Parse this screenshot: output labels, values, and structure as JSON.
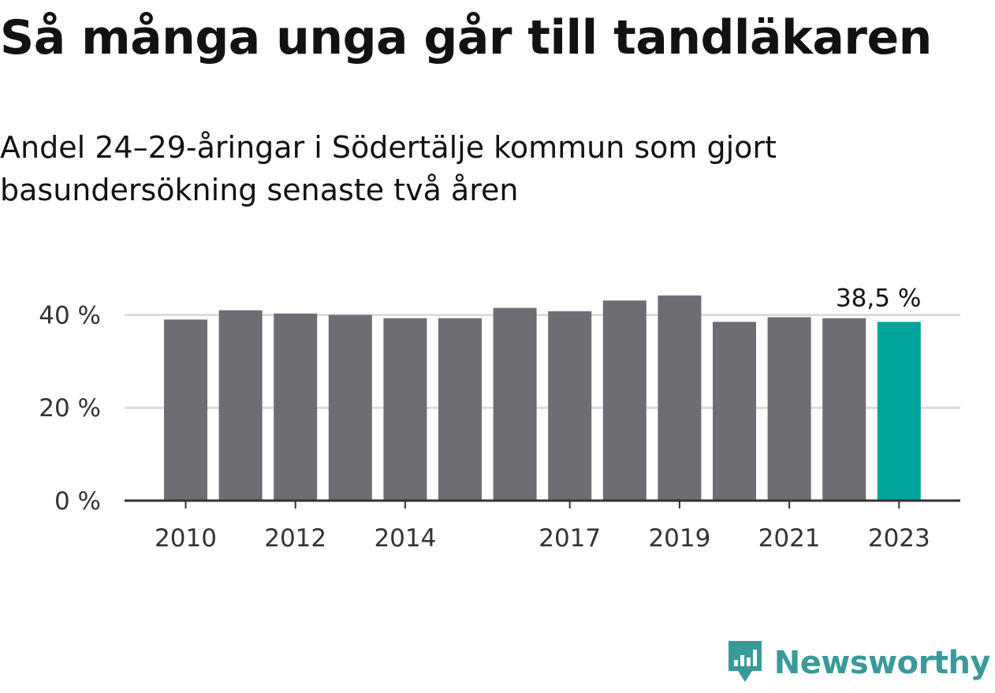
{
  "title": "Så många unga går till tandläkaren",
  "subtitle": "Andel 24–29-åringar i Södertälje kommun som gjort basundersökning senaste två åren",
  "brand": {
    "name": "Newsworthy",
    "icon": "newsworthy-logo-icon"
  },
  "colors": {
    "bar": "#6e6d73",
    "highlight": "#00a49a",
    "grid": "#dcdcdc",
    "axis": "#333333",
    "brand": "#3a9a98"
  },
  "chart_data": {
    "type": "bar",
    "categories": [
      "2010",
      "2011",
      "2012",
      "2013",
      "2014",
      "2015",
      "2016",
      "2017",
      "2018",
      "2019",
      "2020",
      "2021",
      "2022",
      "2023"
    ],
    "values": [
      39.0,
      41.0,
      40.3,
      40.0,
      39.3,
      39.3,
      41.5,
      40.8,
      43.1,
      44.2,
      38.5,
      39.5,
      39.3,
      38.5
    ],
    "highlight_index": 13,
    "data_labels": [
      {
        "index": 13,
        "text": "38,5 %"
      }
    ],
    "ylim": [
      0,
      45
    ],
    "yticks": [
      0,
      20,
      40
    ],
    "ytick_labels": [
      "0 %",
      "20 %",
      "40 %"
    ],
    "xtick_labels": [
      "2010",
      "2012",
      "2014",
      "2017",
      "2019",
      "2021",
      "2023"
    ],
    "grid": true,
    "legend": "none"
  }
}
